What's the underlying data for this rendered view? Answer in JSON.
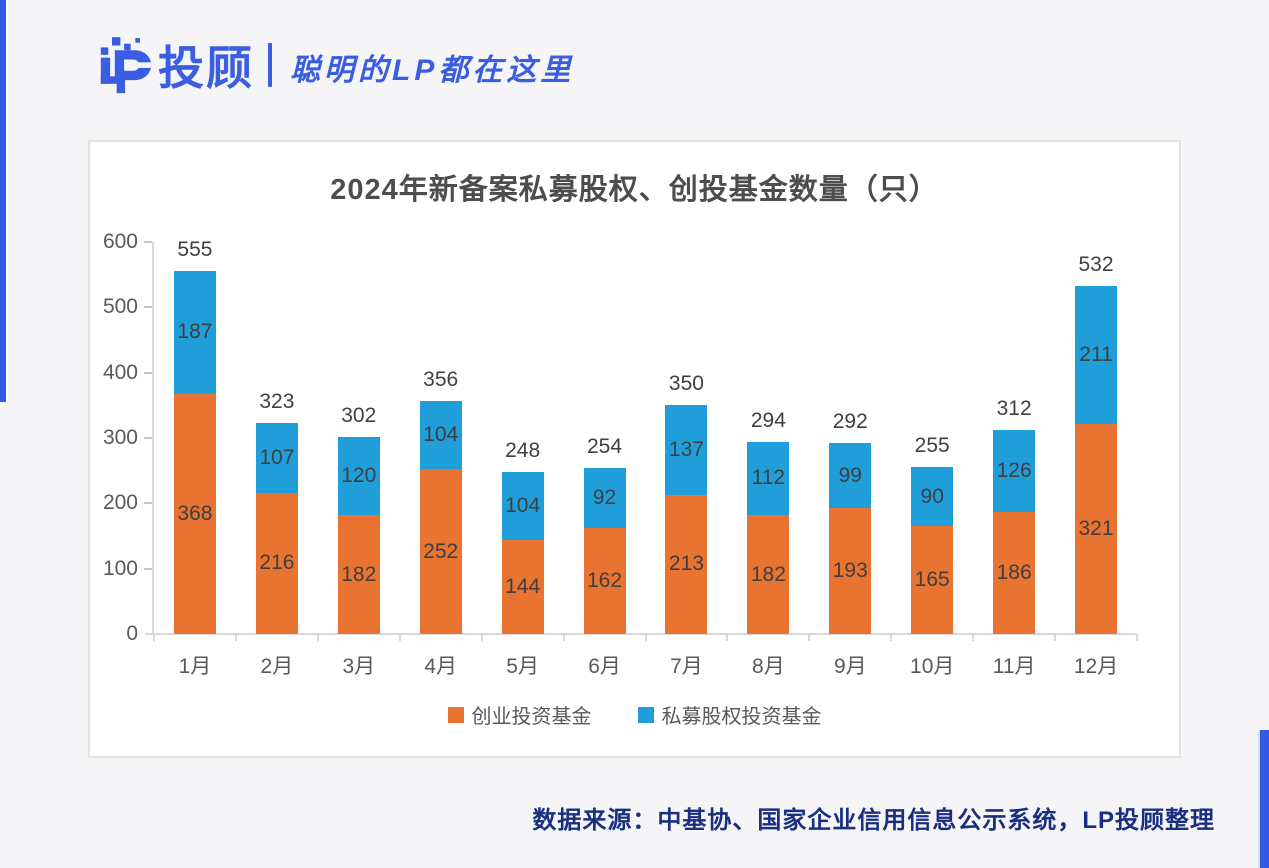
{
  "colors": {
    "accent_blue": "#3358e4",
    "logo_blue": "#3a5de2",
    "series_orange": "#e97432",
    "series_blue": "#1f9ed9",
    "title_gray": "#4d4d4d",
    "axis_gray": "#595959",
    "footer_navy": "#1b2f80",
    "card_bg": "#ffffff",
    "page_bg": "#f5f5f7"
  },
  "header": {
    "logo_text": "投顾",
    "slogan": "聪明的LP都在这里"
  },
  "chart_data": {
    "type": "bar",
    "stacked": true,
    "title": "2024年新备案私募股权、创投基金数量（只）",
    "categories": [
      "1月",
      "2月",
      "3月",
      "4月",
      "5月",
      "6月",
      "7月",
      "8月",
      "9月",
      "10月",
      "11月",
      "12月"
    ],
    "series": [
      {
        "name": "创业投资基金",
        "color": "#e97432",
        "values": [
          368,
          216,
          182,
          252,
          144,
          162,
          213,
          182,
          193,
          165,
          186,
          321
        ]
      },
      {
        "name": "私募股权投资基金",
        "color": "#1f9ed9",
        "values": [
          187,
          107,
          120,
          104,
          104,
          92,
          137,
          112,
          99,
          90,
          126,
          211
        ]
      }
    ],
    "totals": [
      555,
      323,
      302,
      356,
      248,
      254,
      350,
      294,
      292,
      255,
      312,
      532
    ],
    "ylim": [
      0,
      600
    ],
    "ytick_step": 100,
    "grid": false,
    "legend_position": "bottom",
    "data_labels": true
  },
  "footer": {
    "source_text": "数据来源：中基协、国家企业信用信息公示系统，LP投顾整理"
  }
}
